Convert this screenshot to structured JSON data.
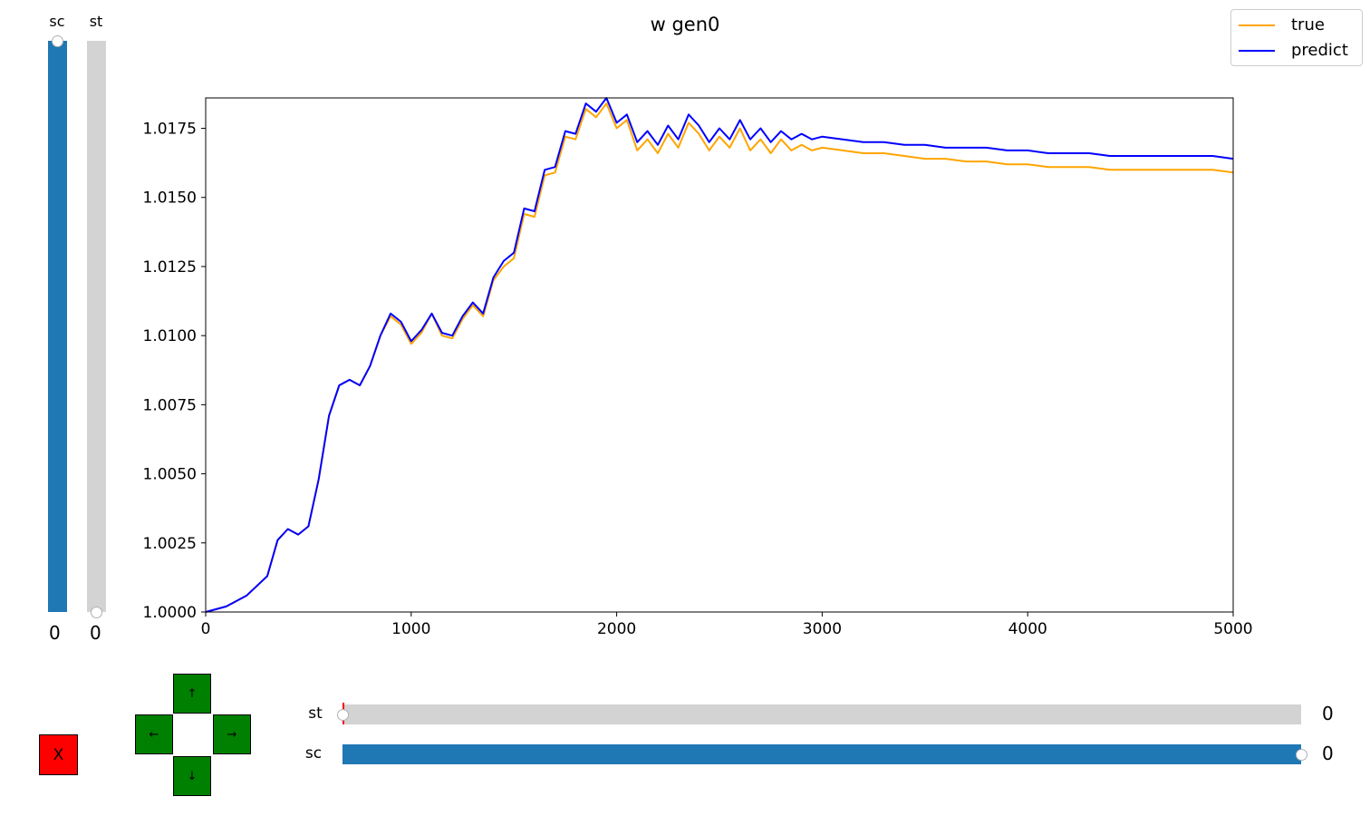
{
  "chart_data": {
    "type": "line",
    "title": "w gen0",
    "xlim": [
      0,
      5000
    ],
    "ylim": [
      1.0,
      1.0186
    ],
    "x_ticks": [
      0,
      1000,
      2000,
      3000,
      4000,
      5000
    ],
    "y_ticks": [
      1.0,
      1.0025,
      1.005,
      1.0075,
      1.01,
      1.0125,
      1.015,
      1.0175
    ],
    "x_tick_labels": [
      "0",
      "1000",
      "2000",
      "3000",
      "4000",
      "5000"
    ],
    "y_tick_labels": [
      "1.0000",
      "1.0025",
      "1.0050",
      "1.0075",
      "1.0100",
      "1.0125",
      "1.0150",
      "1.0175"
    ],
    "grid": false,
    "legend_position": "top-right",
    "series": [
      {
        "name": "true",
        "color": "#ffa500",
        "x": [
          0,
          100,
          200,
          300,
          350,
          400,
          450,
          500,
          550,
          600,
          650,
          700,
          750,
          800,
          850,
          900,
          950,
          1000,
          1050,
          1100,
          1150,
          1200,
          1250,
          1300,
          1350,
          1400,
          1450,
          1500,
          1550,
          1600,
          1650,
          1700,
          1750,
          1800,
          1850,
          1900,
          1950,
          2000,
          2050,
          2100,
          2150,
          2200,
          2250,
          2300,
          2350,
          2400,
          2450,
          2500,
          2550,
          2600,
          2650,
          2700,
          2750,
          2800,
          2850,
          2900,
          2950,
          3000,
          3100,
          3200,
          3300,
          3400,
          3500,
          3600,
          3700,
          3800,
          3900,
          4000,
          4100,
          4200,
          4300,
          4400,
          4500,
          4600,
          4700,
          4800,
          4900,
          5000
        ],
        "y": [
          1.0,
          1.0002,
          1.0006,
          1.0013,
          1.0026,
          1.003,
          1.0028,
          1.0031,
          1.0048,
          1.0071,
          1.0082,
          1.0084,
          1.0082,
          1.0089,
          1.01,
          1.0107,
          1.0104,
          1.0097,
          1.0101,
          1.0108,
          1.01,
          1.0099,
          1.0106,
          1.0111,
          1.0107,
          1.012,
          1.0125,
          1.0128,
          1.0144,
          1.0143,
          1.0158,
          1.0159,
          1.0172,
          1.0171,
          1.0182,
          1.0179,
          1.0184,
          1.0175,
          1.0178,
          1.0167,
          1.0171,
          1.0166,
          1.0173,
          1.0168,
          1.0177,
          1.0173,
          1.0167,
          1.0172,
          1.0168,
          1.0175,
          1.0167,
          1.0171,
          1.0166,
          1.0171,
          1.0167,
          1.0169,
          1.0167,
          1.0168,
          1.0167,
          1.0166,
          1.0166,
          1.0165,
          1.0164,
          1.0164,
          1.0163,
          1.0163,
          1.0162,
          1.0162,
          1.0161,
          1.0161,
          1.0161,
          1.016,
          1.016,
          1.016,
          1.016,
          1.016,
          1.016,
          1.0159
        ]
      },
      {
        "name": "predict",
        "color": "#0000ff",
        "x": [
          0,
          100,
          200,
          300,
          350,
          400,
          450,
          500,
          550,
          600,
          650,
          700,
          750,
          800,
          850,
          900,
          950,
          1000,
          1050,
          1100,
          1150,
          1200,
          1250,
          1300,
          1350,
          1400,
          1450,
          1500,
          1550,
          1600,
          1650,
          1700,
          1750,
          1800,
          1850,
          1900,
          1950,
          2000,
          2050,
          2100,
          2150,
          2200,
          2250,
          2300,
          2350,
          2400,
          2450,
          2500,
          2550,
          2600,
          2650,
          2700,
          2750,
          2800,
          2850,
          2900,
          2950,
          3000,
          3100,
          3200,
          3300,
          3400,
          3500,
          3600,
          3700,
          3800,
          3900,
          4000,
          4100,
          4200,
          4300,
          4400,
          4500,
          4600,
          4700,
          4800,
          4900,
          5000
        ],
        "y": [
          1.0,
          1.0002,
          1.0006,
          1.0013,
          1.0026,
          1.003,
          1.0028,
          1.0031,
          1.0048,
          1.0071,
          1.0082,
          1.0084,
          1.0082,
          1.0089,
          1.01,
          1.0108,
          1.0105,
          1.0098,
          1.0102,
          1.0108,
          1.0101,
          1.01,
          1.0107,
          1.0112,
          1.0108,
          1.0121,
          1.0127,
          1.013,
          1.0146,
          1.0145,
          1.016,
          1.0161,
          1.0174,
          1.0173,
          1.0184,
          1.0181,
          1.0186,
          1.0177,
          1.018,
          1.017,
          1.0174,
          1.0169,
          1.0176,
          1.0171,
          1.018,
          1.0176,
          1.017,
          1.0175,
          1.0171,
          1.0178,
          1.0171,
          1.0175,
          1.017,
          1.0174,
          1.0171,
          1.0173,
          1.0171,
          1.0172,
          1.0171,
          1.017,
          1.017,
          1.0169,
          1.0169,
          1.0168,
          1.0168,
          1.0168,
          1.0167,
          1.0167,
          1.0166,
          1.0166,
          1.0166,
          1.0165,
          1.0165,
          1.0165,
          1.0165,
          1.0165,
          1.0165,
          1.0164
        ]
      }
    ]
  },
  "legend": {
    "items": [
      "true",
      "predict"
    ]
  },
  "vsliders": [
    {
      "label": "sc",
      "value": "0",
      "fraction": 1.0,
      "color": "#1f77b4"
    },
    {
      "label": "st",
      "value": "0",
      "fraction": 0.0,
      "color": "#d3d3d3"
    }
  ],
  "hsliders": [
    {
      "label": "st",
      "value": "0",
      "fraction": 0.0,
      "color": "#d3d3d3"
    },
    {
      "label": "sc",
      "value": "0",
      "fraction": 1.0,
      "color": "#1f77b4"
    }
  ],
  "dpad": {
    "up": "↑",
    "left": "←",
    "right": "→",
    "down": "↓"
  },
  "close_button": {
    "label": "X",
    "color": "#ff0000"
  }
}
